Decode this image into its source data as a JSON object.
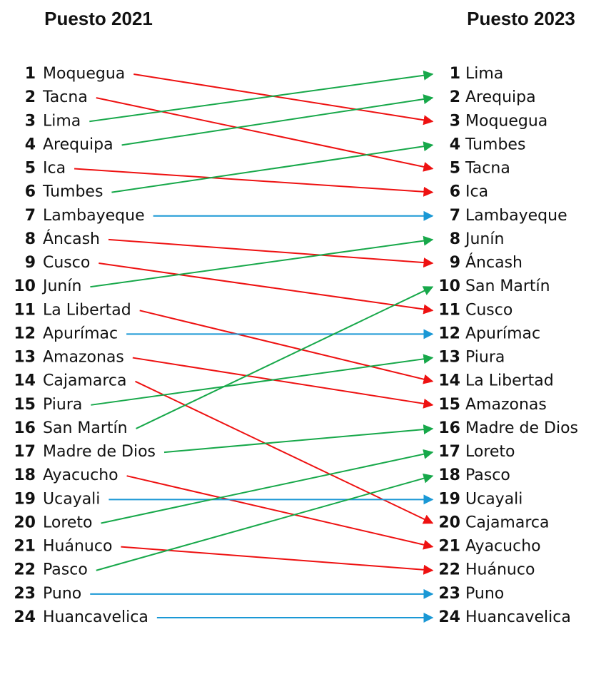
{
  "titles": {
    "left": "Puesto 2021",
    "right": "Puesto 2023"
  },
  "left": [
    {
      "rank": 1,
      "name": "Moquegua"
    },
    {
      "rank": 2,
      "name": "Tacna"
    },
    {
      "rank": 3,
      "name": "Lima"
    },
    {
      "rank": 4,
      "name": "Arequipa"
    },
    {
      "rank": 5,
      "name": "Ica"
    },
    {
      "rank": 6,
      "name": "Tumbes"
    },
    {
      "rank": 7,
      "name": "Lambayeque"
    },
    {
      "rank": 8,
      "name": "Áncash"
    },
    {
      "rank": 9,
      "name": "Cusco"
    },
    {
      "rank": 10,
      "name": "Junín"
    },
    {
      "rank": 11,
      "name": "La Libertad"
    },
    {
      "rank": 12,
      "name": "Apurímac"
    },
    {
      "rank": 13,
      "name": "Amazonas"
    },
    {
      "rank": 14,
      "name": "Cajamarca"
    },
    {
      "rank": 15,
      "name": "Piura"
    },
    {
      "rank": 16,
      "name": "San Martín"
    },
    {
      "rank": 17,
      "name": "Madre de Dios"
    },
    {
      "rank": 18,
      "name": "Ayacucho"
    },
    {
      "rank": 19,
      "name": "Ucayali"
    },
    {
      "rank": 20,
      "name": "Loreto"
    },
    {
      "rank": 21,
      "name": "Huánuco"
    },
    {
      "rank": 22,
      "name": "Pasco"
    },
    {
      "rank": 23,
      "name": "Puno"
    },
    {
      "rank": 24,
      "name": "Huancavelica"
    }
  ],
  "right": [
    {
      "rank": 1,
      "name": "Lima"
    },
    {
      "rank": 2,
      "name": "Arequipa"
    },
    {
      "rank": 3,
      "name": "Moquegua"
    },
    {
      "rank": 4,
      "name": "Tumbes"
    },
    {
      "rank": 5,
      "name": "Tacna"
    },
    {
      "rank": 6,
      "name": "Ica"
    },
    {
      "rank": 7,
      "name": "Lambayeque"
    },
    {
      "rank": 8,
      "name": "Junín"
    },
    {
      "rank": 9,
      "name": "Áncash"
    },
    {
      "rank": 10,
      "name": "San Martín"
    },
    {
      "rank": 11,
      "name": "Cusco"
    },
    {
      "rank": 12,
      "name": "Apurímac"
    },
    {
      "rank": 13,
      "name": "Piura"
    },
    {
      "rank": 14,
      "name": "La Libertad"
    },
    {
      "rank": 15,
      "name": "Amazonas"
    },
    {
      "rank": 16,
      "name": "Madre de Dios"
    },
    {
      "rank": 17,
      "name": "Loreto"
    },
    {
      "rank": 18,
      "name": "Pasco"
    },
    {
      "rank": 19,
      "name": "Ucayali"
    },
    {
      "rank": 20,
      "name": "Cajamarca"
    },
    {
      "rank": 21,
      "name": "Ayacucho"
    },
    {
      "rank": 22,
      "name": "Huánuco"
    },
    {
      "rank": 23,
      "name": "Puno"
    },
    {
      "rank": 24,
      "name": "Huancavelica"
    }
  ]
}
